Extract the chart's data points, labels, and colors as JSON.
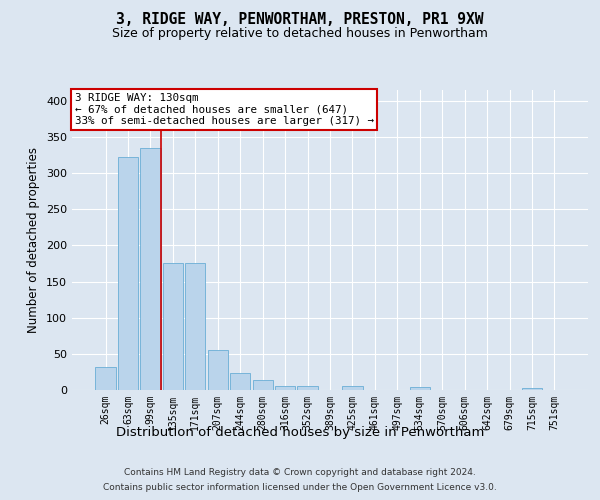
{
  "title_line1": "3, RIDGE WAY, PENWORTHAM, PRESTON, PR1 9XW",
  "title_line2": "Size of property relative to detached houses in Penwortham",
  "xlabel": "Distribution of detached houses by size in Penwortham",
  "ylabel": "Number of detached properties",
  "footer_line1": "Contains HM Land Registry data © Crown copyright and database right 2024.",
  "footer_line2": "Contains public sector information licensed under the Open Government Licence v3.0.",
  "bar_labels": [
    "26sqm",
    "63sqm",
    "99sqm",
    "135sqm",
    "171sqm",
    "207sqm",
    "244sqm",
    "280sqm",
    "316sqm",
    "352sqm",
    "389sqm",
    "425sqm",
    "461sqm",
    "497sqm",
    "534sqm",
    "570sqm",
    "606sqm",
    "642sqm",
    "679sqm",
    "715sqm",
    "751sqm"
  ],
  "bar_values": [
    32,
    323,
    335,
    175,
    175,
    55,
    23,
    14,
    6,
    6,
    0,
    5,
    0,
    0,
    4,
    0,
    0,
    0,
    0,
    3,
    0
  ],
  "bar_color": "#bad4eb",
  "bar_edge_color": "#6aaed6",
  "bg_color": "#dce6f1",
  "plot_bg_color": "#dce6f1",
  "grid_color": "#ffffff",
  "annotation_text": "3 RIDGE WAY: 130sqm\n← 67% of detached houses are smaller (647)\n33% of semi-detached houses are larger (317) →",
  "annotation_box_color": "#ffffff",
  "annotation_box_edge": "#cc0000",
  "marker_line_color": "#cc0000",
  "ylim": [
    0,
    415
  ],
  "yticks": [
    0,
    50,
    100,
    150,
    200,
    250,
    300,
    350,
    400
  ]
}
